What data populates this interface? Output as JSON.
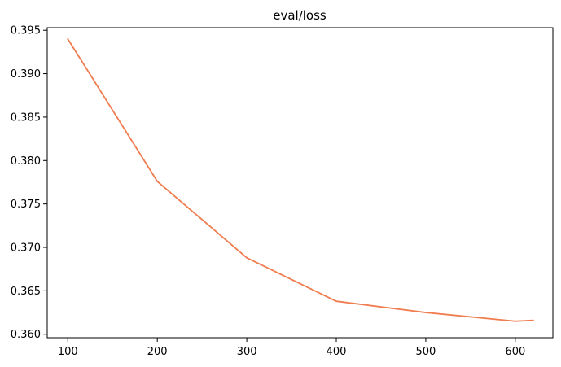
{
  "chart_data": {
    "type": "line",
    "title": "eval/loss",
    "xlabel": "",
    "ylabel": "",
    "xlim": [
      77,
      642
    ],
    "ylim": [
      0.3596,
      0.3953
    ],
    "grid": false,
    "x_ticks": [
      100,
      200,
      300,
      400,
      500,
      600
    ],
    "x_tick_labels": [
      "100",
      "200",
      "300",
      "400",
      "500",
      "600"
    ],
    "y_ticks": [
      0.36,
      0.365,
      0.37,
      0.375,
      0.38,
      0.385,
      0.39,
      0.395
    ],
    "y_tick_labels": [
      "0.360",
      "0.365",
      "0.370",
      "0.375",
      "0.380",
      "0.385",
      "0.390",
      "0.395"
    ],
    "series": [
      {
        "color": "#f07c4f",
        "x": [
          100,
          200,
          300,
          400,
          500,
          600,
          620
        ],
        "y": [
          0.394,
          0.3776,
          0.3688,
          0.3638,
          0.3625,
          0.3615,
          0.3616
        ]
      }
    ]
  }
}
